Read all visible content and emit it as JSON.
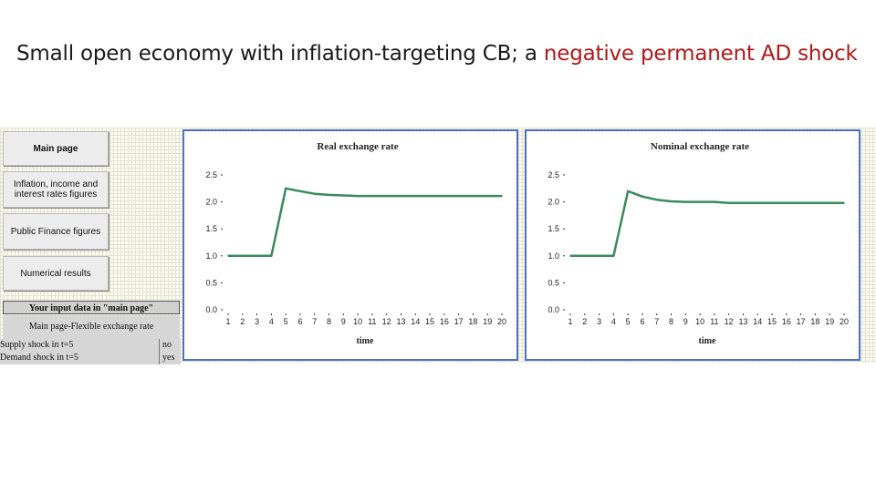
{
  "slide": {
    "title_prefix": "Small open economy with inflation-targeting CB; a ",
    "title_highlight": "negative permanent AD shock",
    "highlight_color": "#b01818"
  },
  "nav": {
    "buttons": [
      {
        "label": "Main page"
      },
      {
        "label": "Inflation, income and interest rates figures"
      },
      {
        "label": "Public Finance figures"
      },
      {
        "label": "Numerical results"
      }
    ]
  },
  "input_data": {
    "header": "Your input data in \"main page\"",
    "subheader": "Main page-Flexible exchange rate",
    "rows": [
      {
        "label": "Supply shock in t=5",
        "value": "no"
      },
      {
        "label": "Demand shock in t=5",
        "value": "yes"
      }
    ]
  },
  "chart_data": [
    {
      "type": "line",
      "title": "Real exchange rate",
      "xlabel": "time",
      "ylabel": "",
      "x": [
        1,
        2,
        3,
        4,
        5,
        6,
        7,
        8,
        9,
        10,
        11,
        12,
        13,
        14,
        15,
        16,
        17,
        18,
        19,
        20
      ],
      "series": [
        {
          "values": [
            1.0,
            1.0,
            1.0,
            1.0,
            2.25,
            2.2,
            2.15,
            2.13,
            2.12,
            2.11,
            2.11,
            2.11,
            2.11,
            2.11,
            2.11,
            2.11,
            2.11,
            2.11,
            2.11,
            2.11
          ],
          "color": "#3a8a5a"
        }
      ],
      "ylim": [
        0.0,
        2.5
      ],
      "yticks": [
        "0.0",
        "0.5",
        "1.0",
        "1.5",
        "2.0",
        "2.5"
      ],
      "grid": false
    },
    {
      "type": "line",
      "title": "Nominal exchange rate",
      "xlabel": "time",
      "ylabel": "",
      "x": [
        1,
        2,
        3,
        4,
        5,
        6,
        7,
        8,
        9,
        10,
        11,
        12,
        13,
        14,
        15,
        16,
        17,
        18,
        19,
        20
      ],
      "series": [
        {
          "values": [
            1.0,
            1.0,
            1.0,
            1.0,
            2.2,
            2.1,
            2.04,
            2.01,
            2.0,
            2.0,
            2.0,
            1.98,
            1.98,
            1.98,
            1.98,
            1.98,
            1.98,
            1.98,
            1.98,
            1.98
          ],
          "color": "#3a8a5a"
        }
      ],
      "ylim": [
        0.0,
        2.5
      ],
      "yticks": [
        "0.0",
        "0.5",
        "1.0",
        "1.5",
        "2.0",
        "2.5"
      ],
      "grid": false
    }
  ]
}
